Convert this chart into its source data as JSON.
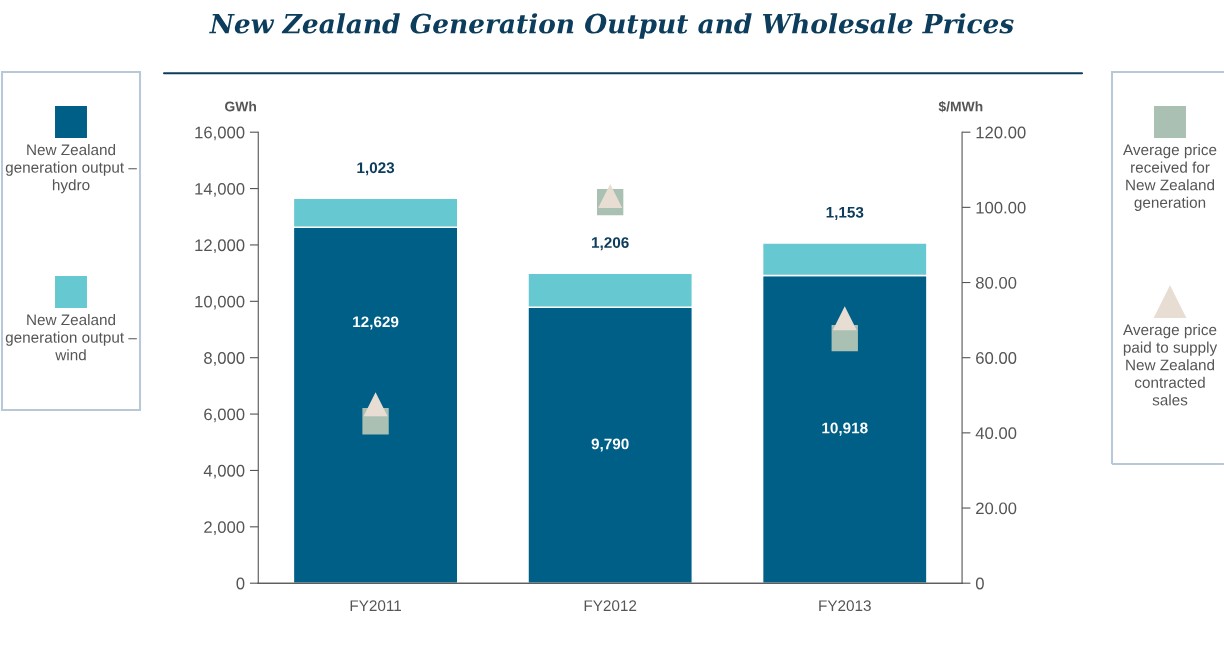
{
  "chart_data": {
    "type": "bar",
    "title": "New Zealand Generation Output and Wholesale Prices",
    "categories": [
      "FY2011",
      "FY2012",
      "FY2013"
    ],
    "stacked": true,
    "ylabel": "GWh",
    "y2label": "$/MWh",
    "ylim": [
      0,
      16000
    ],
    "yticks": [
      0,
      {
        "value": 2000,
        "label": "2,000"
      },
      {
        "value": 4000,
        "label": "4,000"
      },
      {
        "value": 6000,
        "label": "6,000"
      },
      {
        "value": 8000,
        "label": "8,000"
      },
      {
        "value": 10000,
        "label": "10,000"
      },
      {
        "value": 12000,
        "label": "12,000"
      },
      {
        "value": 14000,
        "label": "14,000"
      },
      {
        "value": 16000,
        "label": "16,000"
      }
    ],
    "y2lim": [
      0,
      120
    ],
    "y2ticks": [
      0,
      {
        "value": 20,
        "label": "20.00"
      },
      {
        "value": 40,
        "label": "40.00"
      },
      {
        "value": 60,
        "label": "60.00"
      },
      {
        "value": 80,
        "label": "80.00"
      },
      {
        "value": 100,
        "label": "100.00"
      },
      {
        "value": 120,
        "label": "120.00"
      }
    ],
    "grid": false,
    "legend": "left",
    "series": [
      {
        "name": "New Zealand generation output – hydro",
        "color": "#005f87",
        "values": [
          12629,
          9790,
          10918
        ],
        "value_labels": [
          "12,629",
          "9,790",
          "10,918"
        ]
      },
      {
        "name": "New Zealand generation output – wind",
        "color": "#66c8d0",
        "values": [
          1023,
          1206,
          1153
        ],
        "value_labels": [
          "1,023",
          "1,206",
          "1,153"
        ]
      },
      {
        "name": "Average price received for New Zealand generation",
        "type": "scatter",
        "axis": "y2",
        "marker": "square",
        "color": "#a9c0b3",
        "values": [
          43.1,
          101.4,
          65.2
        ]
      },
      {
        "name": "Average price paid to supply New Zealand contracted sales",
        "type": "scatter",
        "axis": "y2",
        "marker": "triangle",
        "color": "#e8ddd2",
        "values": [
          47.6,
          103,
          70.5
        ]
      }
    ]
  }
}
